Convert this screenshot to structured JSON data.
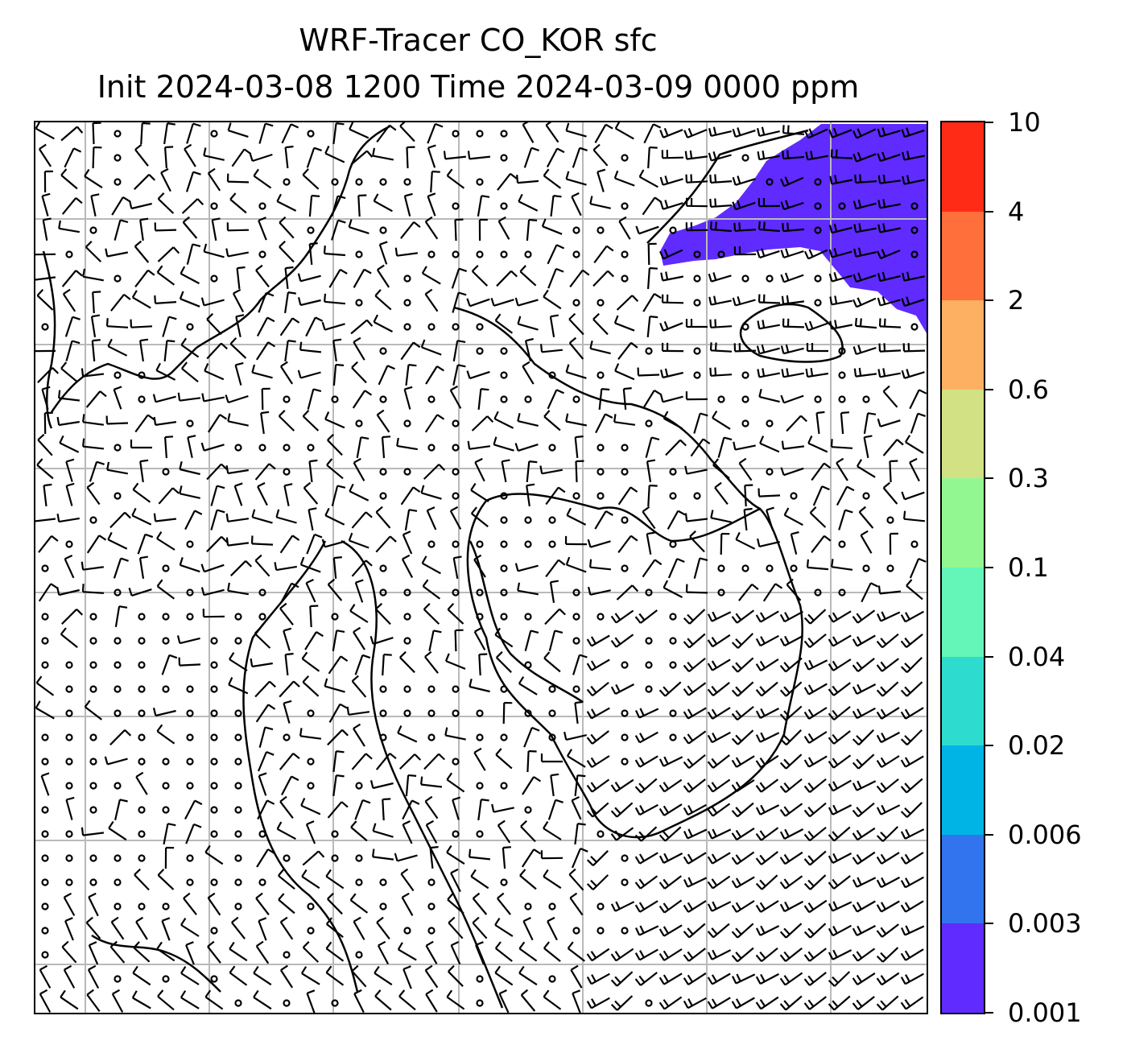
{
  "figure": {
    "title_line1": "WRF-Tracer CO_KOR sfc",
    "title_line2": "Init 2024-03-08 1200 Time 2024-03-09 0000 ppm"
  },
  "colorbar": {
    "levels": [
      "0.001",
      "0.003",
      "0.006",
      "0.02",
      "0.04",
      "0.1",
      "0.3",
      "0.6",
      "2",
      "4",
      "10"
    ],
    "colors": [
      "#5f2bff",
      "#3273ee",
      "#00b4e6",
      "#2edccf",
      "#64f5b8",
      "#93f791",
      "#d1e184",
      "#fdb062",
      "#fe6f3b",
      "#ff2b17"
    ]
  },
  "chart_data": {
    "type": "heatmap",
    "variable": "CO_KOR",
    "units": "ppm",
    "level": "sfc",
    "init_time": "2024-03-08 1200",
    "valid_time": "2024-03-09 0000",
    "contour_levels": [
      0.001,
      0.003,
      0.006,
      0.02,
      0.04,
      0.1,
      0.3,
      0.6,
      2,
      4,
      10
    ],
    "filled_region": {
      "level_band": [
        0.001,
        0.003
      ],
      "color": "#5f2bff",
      "location": "top-right"
    },
    "grid": true,
    "overlays": [
      "coastlines",
      "wind-barbs"
    ]
  }
}
